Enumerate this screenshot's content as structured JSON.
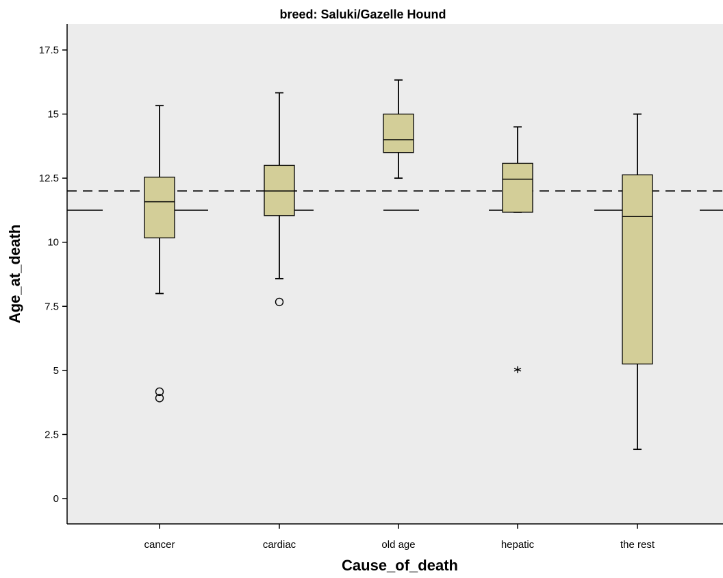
{
  "chart_data": {
    "type": "boxplot",
    "title": "breed: Saluki/Gazelle Hound",
    "xlabel": "Cause_of_death",
    "ylabel": "Age_at_death",
    "ylim": [
      -1,
      18.5
    ],
    "yticks": [
      0,
      2.5,
      5,
      7.5,
      10,
      12.5,
      15,
      17.5
    ],
    "ytick_labels": [
      "0",
      "2.5",
      "5",
      "7.5",
      "10",
      "12.5",
      "15",
      "17.5"
    ],
    "categories": [
      "cancer",
      "cardiac",
      "old age",
      "hepatic",
      "the rest"
    ],
    "boxes": [
      {
        "category": "cancer",
        "whisker_low": 8.0,
        "q1": 10.17,
        "median": 11.58,
        "q3": 12.54,
        "whisker_high": 15.33,
        "outliers": [
          4.17,
          3.92
        ],
        "extremes": []
      },
      {
        "category": "cardiac",
        "whisker_low": 8.58,
        "q1": 11.04,
        "median": 12.0,
        "q3": 13.0,
        "whisker_high": 15.83,
        "outliers": [
          7.67
        ],
        "extremes": []
      },
      {
        "category": "old age",
        "whisker_low": 12.5,
        "q1": 13.5,
        "median": 14.0,
        "q3": 15.0,
        "whisker_high": 16.33,
        "outliers": [],
        "extremes": []
      },
      {
        "category": "hepatic",
        "whisker_low": 11.17,
        "q1": 11.17,
        "median": 12.46,
        "q3": 13.08,
        "whisker_high": 14.5,
        "outliers": [],
        "extremes": [
          5.0
        ]
      },
      {
        "category": "the rest",
        "whisker_low": 1.92,
        "q1": 5.25,
        "median": 11.0,
        "q3": 12.63,
        "whisker_high": 15.0,
        "outliers": [],
        "extremes": []
      }
    ],
    "reference_lines": [
      {
        "value": 12.0,
        "style": "short-dash"
      },
      {
        "value": 11.25,
        "style": "long-dash"
      }
    ],
    "colors": {
      "background": "#ececec",
      "box_fill": "#d3ce98",
      "line": "#000000"
    },
    "grid": false,
    "legend": "none"
  }
}
